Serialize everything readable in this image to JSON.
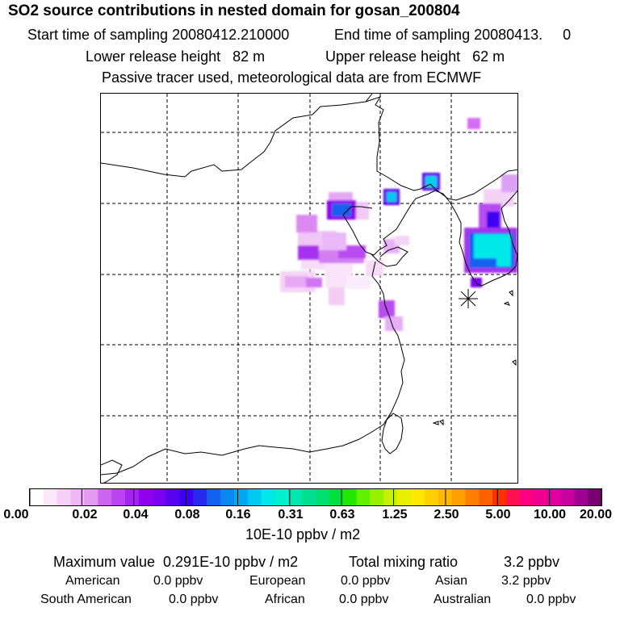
{
  "header": {
    "title": "SO2 source contributions in nested domain for gosan_200804",
    "start_sampling": "Start time of sampling 20080412.210000",
    "end_sampling": "End time of sampling 20080413.     0",
    "lower_release": "Lower release height   82 m",
    "upper_release": "Upper release height   62 m",
    "tracer_note": "Passive tracer used, meteorological data are from ECMWF"
  },
  "map": {
    "receptor_marker": "gosan-receptor-star"
  },
  "colorbar": {
    "tick_labels": [
      "0.00",
      "0.02",
      "0.04",
      "0.08",
      "0.16",
      "0.31",
      "0.63",
      "1.25",
      "2.50",
      "5.00",
      "10.00",
      "20.00"
    ],
    "units": "10E-10 ppbv / m2",
    "colors": [
      "#ffffff",
      "#fbe7fb",
      "#f5cff5",
      "#eeb6f5",
      "#e39bf0",
      "#cc66f0",
      "#bb44f0",
      "#a622f0",
      "#8f00ee",
      "#7a00f0",
      "#5a00f0",
      "#3c00f0",
      "#2828f0",
      "#1460f0",
      "#0a88f0",
      "#00a8f0",
      "#00c8f0",
      "#00e8e8",
      "#00f0d0",
      "#00e8b0",
      "#00e090",
      "#00e070",
      "#00e040",
      "#20e800",
      "#60f000",
      "#98f000",
      "#c8f000",
      "#e8f000",
      "#ffe800",
      "#ffd000",
      "#ffb800",
      "#ffa000",
      "#ff8000",
      "#ff6000",
      "#ff3000",
      "#ff1050",
      "#ff0080",
      "#f00090",
      "#e000a0",
      "#c800a0",
      "#a00090",
      "#7a0070"
    ]
  },
  "stats": {
    "maximum_value": "Maximum value  0.291E-10 ppbv / m2",
    "total_mixing_label": "Total mixing ratio",
    "total_mixing_value": "3.2 ppbv",
    "regions": [
      {
        "label": "American",
        "value": "0.0 ppbv"
      },
      {
        "label": "European",
        "value": "0.0 ppbv"
      },
      {
        "label": "Asian",
        "value": "3.2 ppbv"
      },
      {
        "label": "South American",
        "value": "0.0 ppbv"
      },
      {
        "label": "African",
        "value": "0.0 ppbv"
      },
      {
        "label": "Australian",
        "value": "0.0 ppbv"
      }
    ]
  }
}
